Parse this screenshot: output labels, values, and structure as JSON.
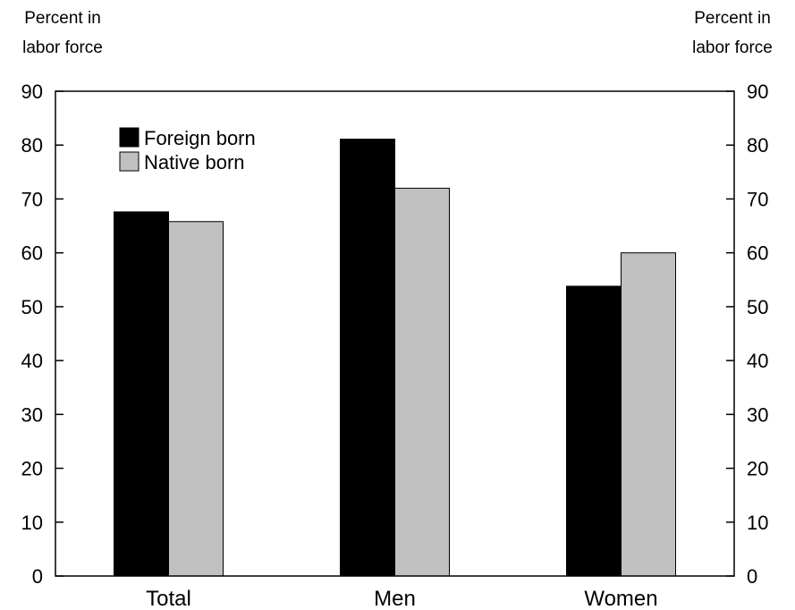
{
  "chart_data": {
    "type": "bar",
    "categories": [
      "Total",
      "Men",
      "Women"
    ],
    "series": [
      {
        "name": "Foreign born",
        "values": [
          67.6,
          81.1,
          53.8
        ],
        "color": "#000000"
      },
      {
        "name": "Native born",
        "values": [
          65.8,
          72.0,
          60.0
        ],
        "color": "#c0c0c0"
      }
    ],
    "ylabel_left": [
      "Percent in",
      "labor force"
    ],
    "ylabel_right": [
      "Percent in",
      "labor force"
    ],
    "ylim": [
      0,
      90
    ],
    "yticks": [
      0,
      10,
      20,
      30,
      40,
      50,
      60,
      70,
      80,
      90
    ],
    "grid": false,
    "legend_position": "top-left"
  }
}
